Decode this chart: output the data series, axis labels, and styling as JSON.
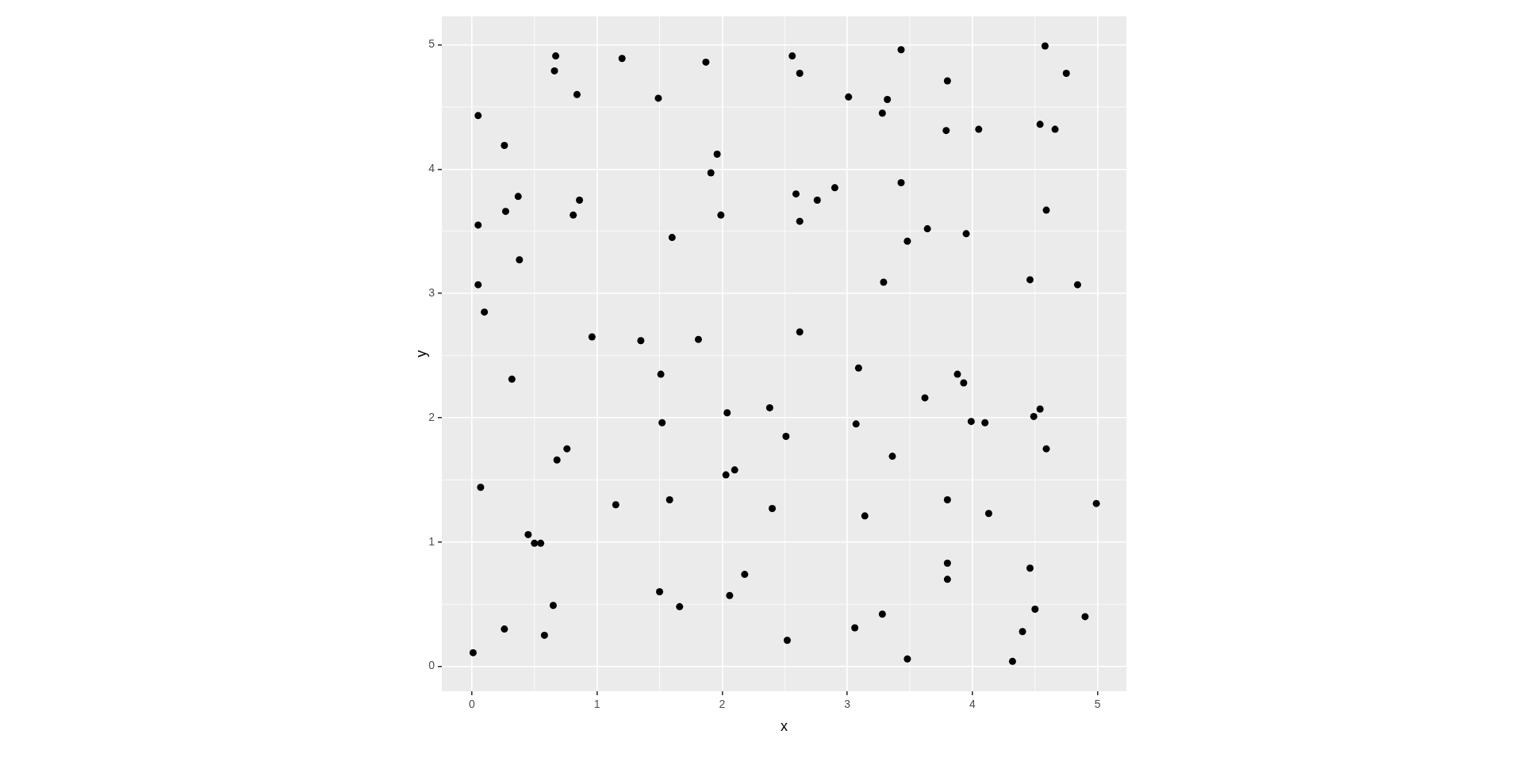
{
  "chart_data": {
    "type": "scatter",
    "xlabel": "x",
    "ylabel": "y",
    "color": "#000000",
    "marker": "circle",
    "grid": true,
    "legend": false,
    "xlim": [
      -0.24,
      5.23
    ],
    "ylim": [
      -0.2,
      5.23
    ],
    "xticks": [
      0,
      1,
      2,
      3,
      4,
      5
    ],
    "yticks": [
      0,
      1,
      2,
      3,
      4,
      5
    ],
    "x": [
      0.01,
      0.05,
      0.05,
      0.05,
      0.1,
      0.07,
      0.26,
      0.27,
      0.37,
      0.38,
      0.32,
      0.26,
      0.45,
      0.5,
      0.55,
      0.58,
      0.65,
      0.67,
      0.66,
      0.84,
      0.81,
      0.86,
      0.68,
      0.76,
      0.96,
      1.15,
      1.2,
      1.35,
      1.49,
      1.51,
      1.52,
      1.5,
      1.58,
      1.6,
      1.66,
      1.81,
      1.87,
      1.91,
      1.96,
      1.99,
      2.04,
      2.03,
      2.1,
      2.06,
      2.18,
      2.38,
      2.4,
      2.51,
      2.52,
      2.56,
      2.62,
      2.59,
      2.62,
      2.62,
      2.76,
      2.9,
      3.01,
      3.06,
      3.07,
      3.09,
      3.14,
      3.28,
      3.32,
      3.29,
      3.28,
      3.36,
      3.43,
      3.43,
      3.48,
      3.48,
      3.64,
      3.62,
      3.8,
      3.79,
      3.8,
      3.8,
      3.8,
      3.88,
      3.93,
      3.95,
      3.99,
      4.05,
      4.1,
      4.13,
      4.32,
      4.4,
      4.46,
      4.46,
      4.49,
      4.5,
      4.54,
      4.54,
      4.58,
      4.59,
      4.59,
      4.66,
      4.75,
      4.84,
      4.9,
      4.99
    ],
    "values": [
      0.11,
      4.43,
      3.55,
      3.07,
      2.85,
      1.44,
      4.19,
      3.66,
      3.78,
      3.27,
      2.31,
      0.3,
      1.06,
      0.99,
      0.99,
      0.25,
      0.49,
      4.91,
      4.79,
      4.6,
      3.63,
      3.75,
      1.66,
      1.75,
      2.65,
      1.3,
      4.89,
      2.62,
      4.57,
      2.35,
      1.96,
      0.6,
      1.34,
      3.45,
      0.48,
      2.63,
      4.86,
      3.97,
      4.12,
      3.63,
      2.04,
      1.54,
      1.58,
      0.57,
      0.74,
      2.08,
      1.27,
      1.85,
      0.21,
      4.91,
      4.77,
      3.8,
      3.58,
      2.69,
      3.75,
      3.85,
      4.58,
      0.31,
      1.95,
      2.4,
      1.21,
      4.45,
      4.56,
      3.09,
      0.42,
      1.69,
      4.96,
      3.89,
      3.42,
      0.06,
      3.52,
      2.16,
      4.71,
      4.31,
      1.34,
      0.83,
      0.7,
      2.35,
      2.28,
      3.48,
      1.97,
      4.32,
      1.96,
      1.23,
      0.04,
      0.28,
      3.11,
      0.79,
      2.01,
      0.46,
      2.07,
      4.36,
      4.99,
      3.67,
      1.75,
      4.32,
      4.77,
      3.07,
      0.4,
      1.31
    ]
  }
}
